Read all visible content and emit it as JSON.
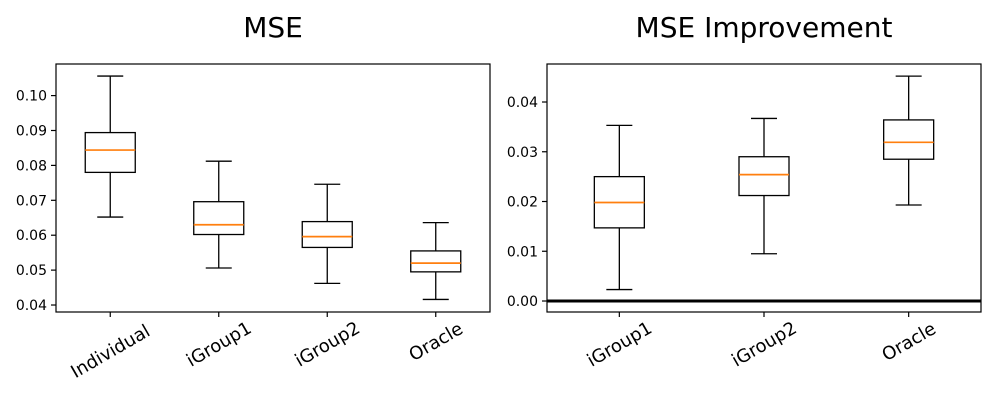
{
  "chart_data": [
    {
      "type": "boxplot",
      "title": "MSE",
      "categories": [
        "Individual",
        "iGroup1",
        "iGroup2",
        "Oracle"
      ],
      "series": [
        {
          "name": "Individual",
          "whislo": 0.0652,
          "q1": 0.078,
          "med": 0.0844,
          "q3": 0.0894,
          "whishi": 0.1056
        },
        {
          "name": "iGroup1",
          "whislo": 0.0506,
          "q1": 0.0602,
          "med": 0.063,
          "q3": 0.0696,
          "whishi": 0.0812
        },
        {
          "name": "iGroup2",
          "whislo": 0.0462,
          "q1": 0.0565,
          "med": 0.0596,
          "q3": 0.0639,
          "whishi": 0.0746
        },
        {
          "name": "Oracle",
          "whislo": 0.0416,
          "q1": 0.0495,
          "med": 0.052,
          "q3": 0.0555,
          "whishi": 0.0636
        }
      ],
      "ylim": [
        0.038,
        0.10905
      ],
      "yticks": [
        0.04,
        0.05,
        0.06,
        0.07,
        0.08,
        0.09,
        0.1
      ],
      "yticklabels": [
        "0.04",
        "0.05",
        "0.06",
        "0.07",
        "0.08",
        "0.09",
        "0.10"
      ],
      "xlabel_rotation_deg": 30,
      "zero_line": false,
      "grid": false,
      "legend": null,
      "colors": {
        "median": "#ff7f0e",
        "box": "#000000",
        "whisker": "#000000",
        "text": "#000000"
      }
    },
    {
      "type": "boxplot",
      "title": "MSE Improvement",
      "categories": [
        "iGroup1",
        "iGroup2",
        "Oracle"
      ],
      "series": [
        {
          "name": "iGroup1",
          "whislo": 0.0023,
          "q1": 0.0147,
          "med": 0.0198,
          "q3": 0.025,
          "whishi": 0.0353
        },
        {
          "name": "iGroup2",
          "whislo": 0.0095,
          "q1": 0.0212,
          "med": 0.0254,
          "q3": 0.029,
          "whishi": 0.0367
        },
        {
          "name": "Oracle",
          "whislo": 0.0193,
          "q1": 0.0285,
          "med": 0.0319,
          "q3": 0.0364,
          "whishi": 0.0452
        }
      ],
      "ylim": [
        -0.00221,
        0.04764
      ],
      "yticks": [
        0.0,
        0.01,
        0.02,
        0.03,
        0.04
      ],
      "yticklabels": [
        "0.00",
        "0.01",
        "0.02",
        "0.03",
        "0.04"
      ],
      "xlabel_rotation_deg": 30,
      "zero_line": true,
      "zero_line_value": 0.0,
      "grid": false,
      "legend": null,
      "colors": {
        "median": "#ff7f0e",
        "box": "#000000",
        "whisker": "#000000",
        "text": "#000000",
        "zero_line": "#000000"
      }
    }
  ]
}
